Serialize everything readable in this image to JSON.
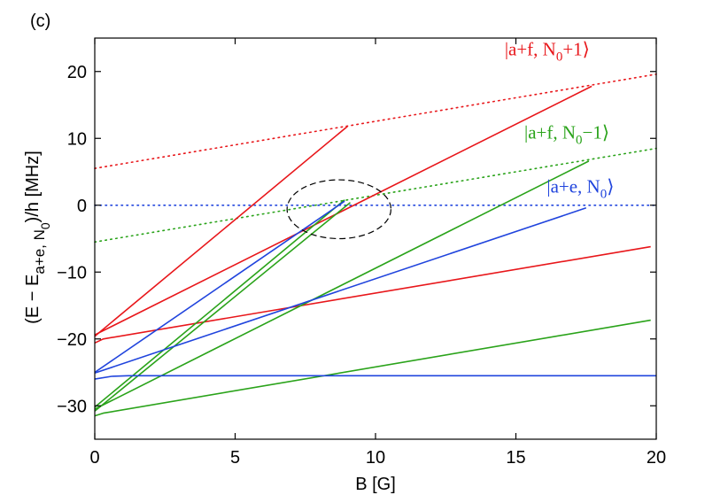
{
  "chart_data": {
    "type": "line",
    "panel_label": "(c)",
    "xlabel": "B [G]",
    "ylabel": {
      "main": "(E − E",
      "sub1": "a+e, N",
      "sub2": "0",
      "tail": ")/h [MHz]"
    },
    "xlim": [
      0,
      20
    ],
    "ylim": [
      -35,
      25
    ],
    "xticks": [
      0,
      5,
      10,
      15,
      20
    ],
    "yticks": [
      20,
      10,
      0,
      -10,
      -20,
      -30
    ],
    "ytick_labels": [
      "20",
      "10",
      "0",
      "−10",
      "−20",
      "−30"
    ],
    "grid": false,
    "colors": {
      "red": "#e8161a",
      "green": "#2aa31a",
      "blue": "#2044dd",
      "black": "#000000"
    },
    "state_labels": [
      {
        "name": "a+f-N0+1",
        "color": "red",
        "pre": "|a+f, N",
        "sub": "0",
        "post": "+1⟩",
        "anchor_x": 14.6,
        "anchor_y": 22.4
      },
      {
        "name": "a+f-N0-1",
        "color": "green",
        "pre": "|a+f, N",
        "sub": "0",
        "post": "−1⟩",
        "anchor_x": 15.3,
        "anchor_y": 10.0
      },
      {
        "name": "a+e-N0",
        "color": "blue",
        "pre": "|a+e, N",
        "sub": "0",
        "post": "⟩",
        "anchor_x": 16.1,
        "anchor_y": 1.9
      }
    ],
    "series": [
      {
        "color": "red",
        "style": "dotted",
        "x": [
          0,
          20
        ],
        "y": [
          5.5,
          19.6
        ]
      },
      {
        "color": "green",
        "style": "dotted",
        "x": [
          0,
          20
        ],
        "y": [
          -5.5,
          8.5
        ]
      },
      {
        "color": "blue",
        "style": "dotted",
        "x": [
          0,
          20
        ],
        "y": [
          0,
          0
        ]
      },
      {
        "color": "red",
        "style": "solid",
        "x": [
          0,
          9.0
        ],
        "y": [
          -19.6,
          11.8
        ]
      },
      {
        "color": "red",
        "style": "solid",
        "x": [
          0,
          17.7
        ],
        "y": [
          -19.4,
          17.8
        ]
      },
      {
        "color": "red",
        "style": "solid",
        "x": [
          0,
          0.3,
          19.8
        ],
        "y": [
          -20.6,
          -20.0,
          -6.2
        ]
      },
      {
        "color": "green",
        "style": "solid",
        "x": [
          0,
          8.9
        ],
        "y": [
          -30.2,
          0.8
        ]
      },
      {
        "color": "green",
        "style": "solid",
        "x": [
          0,
          9.1
        ],
        "y": [
          -30.8,
          0.4
        ]
      },
      {
        "color": "green",
        "style": "solid",
        "x": [
          0,
          17.6
        ],
        "y": [
          -30.5,
          6.6
        ]
      },
      {
        "color": "green",
        "style": "solid",
        "x": [
          0,
          0.3,
          19.8
        ],
        "y": [
          -31.5,
          -31.1,
          -17.2
        ]
      },
      {
        "color": "blue",
        "style": "solid",
        "x": [
          0,
          8.9
        ],
        "y": [
          -25.0,
          0.6
        ]
      },
      {
        "color": "blue",
        "style": "solid",
        "x": [
          0,
          17.5
        ],
        "y": [
          -25.1,
          -0.4
        ]
      },
      {
        "color": "blue",
        "style": "solid",
        "x": [
          0,
          0.6,
          1.2,
          20
        ],
        "y": [
          -26.0,
          -25.6,
          -25.5,
          -25.5
        ]
      }
    ],
    "annotations": [
      {
        "type": "dashed-ellipse",
        "color": "black",
        "cx": 8.7,
        "cy": -0.6,
        "rx": 1.85,
        "ry": 4.4
      }
    ]
  }
}
